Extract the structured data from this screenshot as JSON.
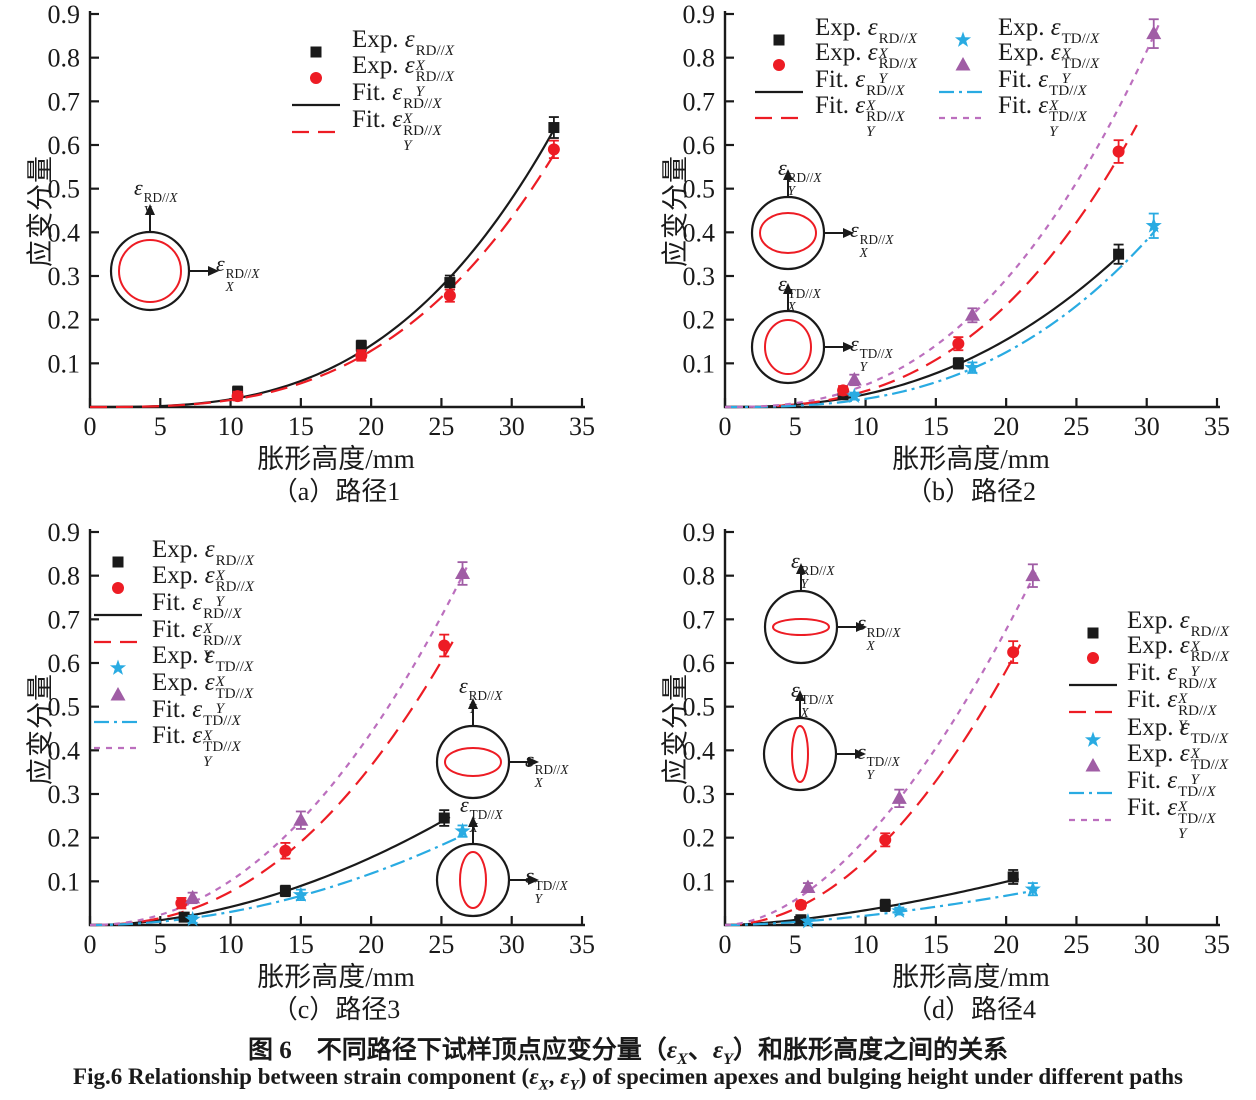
{
  "figure": {
    "captions": {
      "chinese_parts": [
        {
          "t": "图 6　不同路径下试样顶点应变分量（"
        },
        {
          "e": "X"
        },
        {
          "t": "、"
        },
        {
          "e": "Y"
        },
        {
          "t": "）和胀形高度之间的关系"
        }
      ],
      "english_parts": [
        {
          "t": "Fig.6   Relationship between strain component ("
        },
        {
          "e": "X"
        },
        {
          "t": ", "
        },
        {
          "e": "Y"
        },
        {
          "t": ") of specimen apexes and bulging height under different paths"
        }
      ]
    },
    "theme": {
      "black": "#1a1a1a",
      "red": "#ed1c24",
      "cyan": "#29abe2",
      "purple": "#a05da5",
      "purple_line": "#bc6fbe",
      "axis": "#1a1a1a"
    }
  },
  "chart_data": [
    {
      "id": "a",
      "type": "scatter",
      "caption": "（a）路径1",
      "xlabel": "胀形高度/mm",
      "ylabel": "应变分量",
      "xlim": [
        0,
        35
      ],
      "ylim": [
        0,
        0.9
      ],
      "xticks": [
        "0",
        "5",
        "10",
        "15",
        "20",
        "25",
        "30",
        "35"
      ],
      "yticks": [
        "0.1",
        "0.2",
        "0.3",
        "0.4",
        "0.5",
        "0.6",
        "0.7",
        "0.8",
        "0.9"
      ],
      "series": [
        {
          "key": "expRDX",
          "kind": "scatter",
          "marker": "square",
          "color_ref": "black",
          "label": {
            "pre": "Exp.",
            "sub": "X",
            "sup": "RD//X"
          },
          "x": [
            10.5,
            19.3,
            25.6,
            33.0
          ],
          "y": [
            0.035,
            0.14,
            0.285,
            0.64
          ],
          "yerr": [
            0.012,
            0.012,
            0.016,
            0.024
          ]
        },
        {
          "key": "expRDY",
          "kind": "scatter",
          "marker": "circle",
          "color_ref": "red",
          "label": {
            "pre": "Exp.",
            "sub": "Y",
            "sup": "RD//X"
          },
          "x": [
            10.5,
            19.3,
            25.6,
            33.0
          ],
          "y": [
            0.025,
            0.118,
            0.255,
            0.59
          ],
          "yerr": [
            0.01,
            0.012,
            0.014,
            0.02
          ]
        },
        {
          "key": "fitRDX",
          "kind": "fit",
          "style": "solid",
          "color_ref": "black",
          "label": {
            "pre": "Fit.",
            "sub": "X",
            "sup": "RD//X"
          },
          "x_end": 33.0,
          "y_end": 0.635,
          "power": 3.0,
          "x_max": 33.1
        },
        {
          "key": "fitRDY",
          "kind": "fit",
          "style": "long-dash",
          "color_ref": "red",
          "label": {
            "pre": "Fit.",
            "sub": "Y",
            "sup": "RD//X"
          },
          "x_end": 33.0,
          "y_end": 0.578,
          "power": 3.0,
          "x_max": 33.1
        }
      ],
      "insets": [
        {
          "ellipse_rx": 31,
          "ellipse_ry": 31,
          "up_label": {
            "sub": "Y",
            "sup": "RD//X"
          },
          "right_label": {
            "sub": "X",
            "sup": "RD//X"
          }
        }
      ]
    },
    {
      "id": "b",
      "type": "scatter",
      "caption": "（b）路径2",
      "xlabel": "胀形高度/mm",
      "ylabel": "应变分量",
      "xlim": [
        0,
        35
      ],
      "ylim": [
        0,
        0.9
      ],
      "xticks": [
        "0",
        "5",
        "10",
        "15",
        "20",
        "25",
        "30",
        "35"
      ],
      "yticks": [
        "0.1",
        "0.2",
        "0.3",
        "0.4",
        "0.5",
        "0.6",
        "0.7",
        "0.8",
        "0.9"
      ],
      "series": [
        {
          "key": "expRDX",
          "kind": "scatter",
          "marker": "square",
          "color_ref": "black",
          "label": {
            "pre": "Exp.",
            "sub": "X",
            "sup": "RD//X"
          },
          "x": [
            8.4,
            16.6,
            28.0
          ],
          "y": [
            0.028,
            0.1,
            0.35
          ],
          "yerr": [
            0.008,
            0.012,
            0.022
          ]
        },
        {
          "key": "expRDY",
          "kind": "scatter",
          "marker": "circle",
          "color_ref": "red",
          "label": {
            "pre": "Exp.",
            "sub": "Y",
            "sup": "RD//X"
          },
          "x": [
            8.4,
            16.6,
            28.0
          ],
          "y": [
            0.038,
            0.145,
            0.585
          ],
          "yerr": [
            0.01,
            0.015,
            0.026
          ]
        },
        {
          "key": "fitRDX",
          "kind": "fit",
          "style": "solid",
          "color_ref": "black",
          "label": {
            "pre": "Fit.",
            "sub": "X",
            "sup": "RD//X"
          },
          "x_end": 28.0,
          "y_end": 0.345,
          "power": 2.4,
          "x_max": 28.3
        },
        {
          "key": "fitRDY",
          "kind": "fit",
          "style": "long-dash",
          "color_ref": "red",
          "label": {
            "pre": "Fit.",
            "sub": "Y",
            "sup": "RD//X"
          },
          "x_end": 28.0,
          "y_end": 0.572,
          "power": 2.67,
          "x_max": 29.3
        },
        {
          "key": "expTDX",
          "kind": "scatter",
          "marker": "star",
          "color_ref": "cyan",
          "label": {
            "pre": "Exp.",
            "sub": "X",
            "sup": "TD//X"
          },
          "x": [
            9.2,
            17.6,
            30.5
          ],
          "y": [
            0.025,
            0.09,
            0.415
          ],
          "yerr": [
            0.008,
            0.012,
            0.028
          ]
        },
        {
          "key": "expTDY",
          "kind": "scatter",
          "marker": "triangle",
          "color_ref": "purple",
          "label": {
            "pre": "Exp.",
            "sub": "Y",
            "sup": "TD//X"
          },
          "x": [
            9.2,
            17.6,
            30.5
          ],
          "y": [
            0.062,
            0.21,
            0.855
          ],
          "yerr": [
            0.012,
            0.016,
            0.033
          ]
        },
        {
          "key": "fitTDX",
          "kind": "fit",
          "style": "dash-dot",
          "color_ref": "cyan",
          "label": {
            "pre": "Fit.",
            "sub": "X",
            "sup": "TD//X"
          },
          "x_end": 30.5,
          "y_end": 0.4,
          "power": 2.75,
          "x_max": 30.8
        },
        {
          "key": "fitTDY",
          "kind": "fit",
          "style": "short-dash",
          "color_ref": "purple_line",
          "label": {
            "pre": "Fit.",
            "sub": "Y",
            "sup": "TD//X"
          },
          "x_end": 30.5,
          "y_end": 0.85,
          "power": 2.53,
          "x_max": 30.9
        }
      ],
      "insets": [
        {
          "ellipse_rx": 28,
          "ellipse_ry": 20,
          "up_label": {
            "sub": "Y",
            "sup": "RD//X"
          },
          "right_label": {
            "sub": "X",
            "sup": "RD//X"
          }
        },
        {
          "ellipse_rx": 23,
          "ellipse_ry": 27,
          "up_label": {
            "sub": "X",
            "sup": "TD//X"
          },
          "right_label": {
            "sub": "Y",
            "sup": "TD//X"
          }
        }
      ]
    },
    {
      "id": "c",
      "type": "scatter",
      "caption": "（c）路径3",
      "xlabel": "胀形高度/mm",
      "ylabel": "应变分量",
      "xlim": [
        0,
        35
      ],
      "ylim": [
        0,
        0.9
      ],
      "xticks": [
        "0",
        "5",
        "10",
        "15",
        "20",
        "25",
        "30",
        "35"
      ],
      "yticks": [
        "0.1",
        "0.2",
        "0.3",
        "0.4",
        "0.5",
        "0.6",
        "0.7",
        "0.8",
        "0.9"
      ],
      "series": [
        {
          "key": "expRDX",
          "kind": "scatter",
          "marker": "square",
          "color_ref": "black",
          "label": {
            "pre": "Exp.",
            "sub": "X",
            "sup": "RD//X"
          },
          "x": [
            6.7,
            13.9,
            25.2
          ],
          "y": [
            0.018,
            0.078,
            0.245
          ],
          "yerr": [
            0.008,
            0.012,
            0.018
          ]
        },
        {
          "key": "expRDY",
          "kind": "scatter",
          "marker": "circle",
          "color_ref": "red",
          "label": {
            "pre": "Exp.",
            "sub": "Y",
            "sup": "RD//X"
          },
          "x": [
            6.5,
            13.9,
            25.2
          ],
          "y": [
            0.05,
            0.17,
            0.64
          ],
          "yerr": [
            0.012,
            0.018,
            0.025
          ]
        },
        {
          "key": "fitRDX",
          "kind": "fit",
          "style": "solid",
          "color_ref": "black",
          "label": {
            "pre": "Fit.",
            "sub": "X",
            "sup": "RD//X"
          },
          "x_end": 25.2,
          "y_end": 0.24,
          "power": 1.9,
          "x_max": 25.6
        },
        {
          "key": "fitRDY",
          "kind": "fit",
          "style": "long-dash",
          "color_ref": "red",
          "label": {
            "pre": "Fit.",
            "sub": "Y",
            "sup": "RD//X"
          },
          "x_end": 25.2,
          "y_end": 0.615,
          "power": 2.26,
          "x_max": 25.8
        },
        {
          "key": "expTDX",
          "kind": "scatter",
          "marker": "star",
          "color_ref": "cyan",
          "label": {
            "pre": "Exp.",
            "sub": "X",
            "sup": "TD//X"
          },
          "x": [
            7.3,
            15.0,
            26.5
          ],
          "y": [
            0.013,
            0.069,
            0.215
          ],
          "yerr": [
            0.008,
            0.012,
            0.013
          ]
        },
        {
          "key": "expTDY",
          "kind": "scatter",
          "marker": "triangle",
          "color_ref": "purple",
          "label": {
            "pre": "Exp.",
            "sub": "Y",
            "sup": "TD//X"
          },
          "x": [
            7.3,
            15.0,
            26.5
          ],
          "y": [
            0.062,
            0.24,
            0.805
          ],
          "yerr": [
            0.012,
            0.02,
            0.026
          ]
        },
        {
          "key": "fitTDX",
          "kind": "fit",
          "style": "dash-dot",
          "color_ref": "cyan",
          "label": {
            "pre": "Fit.",
            "sub": "X",
            "sup": "TD//X"
          },
          "x_end": 26.5,
          "y_end": 0.205,
          "power": 1.97,
          "x_max": 26.8
        },
        {
          "key": "fitTDY",
          "kind": "fit",
          "style": "short-dash",
          "color_ref": "purple_line",
          "label": {
            "pre": "Fit.",
            "sub": "Y",
            "sup": "TD//X"
          },
          "x_end": 26.5,
          "y_end": 0.8,
          "power": 2.12,
          "x_max": 26.9
        }
      ],
      "insets": [
        {
          "ellipse_rx": 28,
          "ellipse_ry": 14,
          "up_label": {
            "sub": "Y",
            "sup": "RD//X"
          },
          "right_label": {
            "sub": "X",
            "sup": "RD//X"
          }
        },
        {
          "ellipse_rx": 13,
          "ellipse_ry": 28,
          "up_label": {
            "sub": "X",
            "sup": "TD//X"
          },
          "right_label": {
            "sub": "Y",
            "sup": "TD//X"
          }
        }
      ]
    },
    {
      "id": "d",
      "type": "scatter",
      "caption": "（d）路径4",
      "xlabel": "胀形高度/mm",
      "ylabel": "应变分量",
      "xlim": [
        0,
        35
      ],
      "ylim": [
        0,
        0.9
      ],
      "xticks": [
        "0",
        "5",
        "10",
        "15",
        "20",
        "25",
        "30",
        "35"
      ],
      "yticks": [
        "0.1",
        "0.2",
        "0.3",
        "0.4",
        "0.5",
        "0.6",
        "0.7",
        "0.8",
        "0.9"
      ],
      "series": [
        {
          "key": "expRDX",
          "kind": "scatter",
          "marker": "square",
          "color_ref": "black",
          "label": {
            "pre": "Exp.",
            "sub": "X",
            "sup": "RD//X"
          },
          "x": [
            5.4,
            11.4,
            20.5
          ],
          "y": [
            0.012,
            0.045,
            0.11
          ],
          "yerr": [
            0.006,
            0.013,
            0.016
          ]
        },
        {
          "key": "expRDY",
          "kind": "scatter",
          "marker": "circle",
          "color_ref": "red",
          "label": {
            "pre": "Exp.",
            "sub": "Y",
            "sup": "RD//X"
          },
          "x": [
            5.4,
            11.4,
            20.5
          ],
          "y": [
            0.046,
            0.195,
            0.625
          ],
          "yerr": [
            0.008,
            0.015,
            0.025
          ]
        },
        {
          "key": "fitRDX",
          "kind": "fit",
          "style": "solid",
          "color_ref": "black",
          "label": {
            "pre": "Fit.",
            "sub": "X",
            "sup": "RD//X"
          },
          "x_end": 20.5,
          "y_end": 0.103,
          "power": 1.55,
          "x_max": 20.9
        },
        {
          "key": "fitRDY",
          "kind": "fit",
          "style": "long-dash",
          "color_ref": "red",
          "label": {
            "pre": "Fit.",
            "sub": "Y",
            "sup": "RD//X"
          },
          "x_end": 20.5,
          "y_end": 0.612,
          "power": 1.98,
          "x_max": 21.0
        },
        {
          "key": "expTDX",
          "kind": "scatter",
          "marker": "star",
          "color_ref": "cyan",
          "label": {
            "pre": "Exp.",
            "sub": "X",
            "sup": "TD//X"
          },
          "x": [
            5.9,
            12.4,
            21.9
          ],
          "y": [
            0.008,
            0.032,
            0.082
          ],
          "yerr": [
            0.005,
            0.008,
            0.014
          ]
        },
        {
          "key": "expTDY",
          "kind": "scatter",
          "marker": "triangle",
          "color_ref": "purple",
          "label": {
            "pre": "Exp.",
            "sub": "Y",
            "sup": "TD//X"
          },
          "x": [
            5.9,
            12.4,
            21.9
          ],
          "y": [
            0.086,
            0.29,
            0.8
          ],
          "yerr": [
            0.01,
            0.02,
            0.026
          ]
        },
        {
          "key": "fitTDX",
          "kind": "fit",
          "style": "dash-dot",
          "color_ref": "cyan",
          "label": {
            "pre": "Fit.",
            "sub": "X",
            "sup": "TD//X"
          },
          "x_end": 21.9,
          "y_end": 0.078,
          "power": 1.65,
          "x_max": 22.2
        },
        {
          "key": "fitTDY",
          "kind": "fit",
          "style": "short-dash",
          "color_ref": "purple_line",
          "label": {
            "pre": "Fit.",
            "sub": "Y",
            "sup": "TD//X"
          },
          "x_end": 21.9,
          "y_end": 0.795,
          "power": 1.78,
          "x_max": 22.1
        }
      ],
      "insets": [
        {
          "ellipse_rx": 28,
          "ellipse_ry": 8,
          "up_label": {
            "sub": "Y",
            "sup": "RD//X"
          },
          "right_label": {
            "sub": "X",
            "sup": "RD//X"
          }
        },
        {
          "ellipse_rx": 8,
          "ellipse_ry": 28,
          "up_label": {
            "sub": "X",
            "sup": "TD//X"
          },
          "right_label": {
            "sub": "Y",
            "sup": "TD//X"
          }
        }
      ]
    }
  ]
}
